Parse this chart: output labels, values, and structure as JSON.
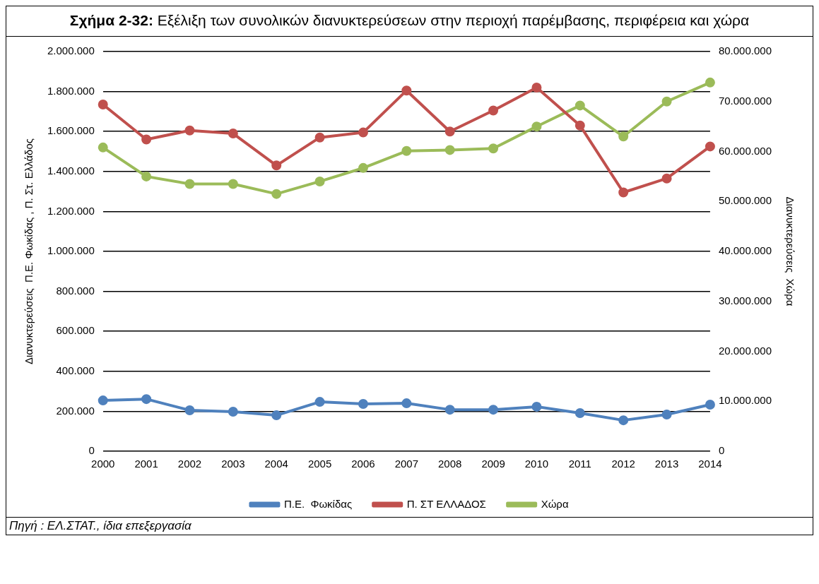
{
  "chart_data": {
    "type": "line",
    "title": "Σχήμα 2-32: Εξέλιξη των συνολικών διανυκτερεύσεων στην  περιοχή παρέμβασης, περιφέρεια και  χώρα",
    "ylabel": "Διανυκτερεύσεις  Π.Ε. Φωκίδας , Π. Στ. Ελλάδος",
    "y2label": "Διανυκτερεύσεις  Χώρα",
    "annotations": [
      "Πηγή : ΕΛ.ΣΤΑΤ., ίδια επεξεργασία"
    ],
    "categories": [
      "2000",
      "2001",
      "2002",
      "2003",
      "2004",
      "2005",
      "2006",
      "2007",
      "2008",
      "2009",
      "2010",
      "2011",
      "2012",
      "2013",
      "2014"
    ],
    "series": [
      {
        "name": "Π.Ε.  Φωκίδας",
        "color": "#4f81bd",
        "values": [
          254000,
          261000,
          205000,
          198000,
          180000,
          247000,
          237000,
          240000,
          208000,
          208000,
          223000,
          191000,
          155000,
          184000,
          233000
        ]
      },
      {
        "name": "Π. ΣΤ ΕΛΛΑΔΟΣ",
        "color": "#c0504d",
        "values": [
          1735000,
          1560000,
          1605000,
          1590000,
          1430000,
          1570000,
          1595000,
          1805000,
          1600000,
          1705000,
          1820000,
          1630000,
          1295000,
          1365000,
          1525000
        ]
      },
      {
        "name": "Χώρα",
        "color": "#9bbb59",
        "axis": "y2",
        "values": [
          60800000,
          55000000,
          53500000,
          53500000,
          51500000,
          54000000,
          56700000,
          60100000,
          60300000,
          60600000,
          65000000,
          69200000,
          63000000,
          70000000,
          73800000
        ]
      }
    ],
    "ylim": [
      0,
      2000000
    ],
    "yticks": [
      {
        "value": 0,
        "label": "0"
      },
      {
        "value": 200000,
        "label": "200.000"
      },
      {
        "value": 400000,
        "label": "400.000"
      },
      {
        "value": 600000,
        "label": "600.000"
      },
      {
        "value": 800000,
        "label": "800.000"
      },
      {
        "value": 1000000,
        "label": "1.000.000"
      },
      {
        "value": 1200000,
        "label": "1.200.000"
      },
      {
        "value": 1400000,
        "label": "1.400.000"
      },
      {
        "value": 1600000,
        "label": "1.600.000"
      },
      {
        "value": 1800000,
        "label": "1.800.000"
      },
      {
        "value": 2000000,
        "label": "2.000.000"
      }
    ],
    "y2lim": [
      0,
      80000000
    ],
    "y2ticks": [
      {
        "value": 0,
        "label": "0"
      },
      {
        "value": 10000000,
        "label": "10.000.000"
      },
      {
        "value": 20000000,
        "label": "20.000.000"
      },
      {
        "value": 30000000,
        "label": "30.000.000"
      },
      {
        "value": 40000000,
        "label": "40.000.000"
      },
      {
        "value": 50000000,
        "label": "50.000.000"
      },
      {
        "value": 60000000,
        "label": "60.000.000"
      },
      {
        "value": 70000000,
        "label": "70.000.000"
      },
      {
        "value": 80000000,
        "label": "80.000.000"
      }
    ],
    "grid": "y",
    "legend": "bottom",
    "marker": "circle",
    "line_style": "solid"
  }
}
